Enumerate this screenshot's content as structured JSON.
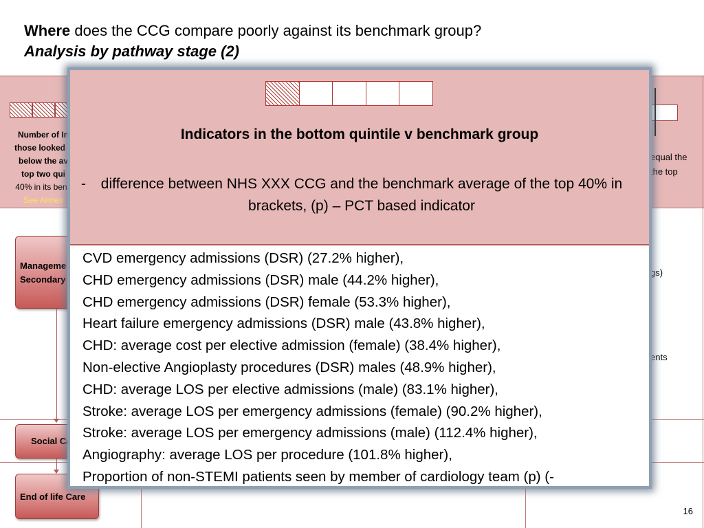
{
  "title": {
    "bold_word": "Where",
    "rest": " does the CCG compare poorly against its benchmark group?",
    "subtitle": "Analysis by pathway stage (2)"
  },
  "background": {
    "left_label_bold": [
      "Number of In",
      "those looked a",
      "below the av",
      "top two qui"
    ],
    "left_label_plain": "40% in its benc",
    "left_label_link": "See Annex",
    "right_label": [
      "equal the",
      "the top"
    ],
    "right_text1": "gs)",
    "right_text2": "ents",
    "stages": [
      {
        "line1": "Manageme",
        "line2": "Secondary"
      },
      {
        "line1": "Social Ca"
      },
      {
        "line1": "End of life Care"
      }
    ],
    "page_number": "16"
  },
  "overlay": {
    "title": "Indicators  in the bottom quintile v benchmark group",
    "subtitle_dash": "-",
    "subtitle": "difference between NHS XXX CCG and the benchmark average of the top 40% in brackets, (p) – PCT based indicator",
    "items": [
      "CVD emergency admissions  (DSR) (27.2% higher),",
      "CHD emergency admissions (DSR) male (44.2% higher),",
      "CHD emergency admissions (DSR) female  (53.3% higher),",
      "Heart failure emergency admissions  (DSR) male (43.8% higher),",
      "CHD: average cost per elective  admission  (female)  (38.4% higher),",
      "Non-elective  Angioplasty procedures (DSR) males (48.9% higher),",
      "CHD: average LOS per elective admissions  (male) (83.1% higher),",
      "Stroke: average LOS per emergency admissions (female)  (90.2% higher),",
      "Stroke: average LOS per emergency admissions (male) (112.4% higher),",
      "Angiography: average LOS per procedure (101.8% higher),",
      "Proportion of non-STEMI patients seen by member  of cardiology team (p) (-"
    ]
  }
}
